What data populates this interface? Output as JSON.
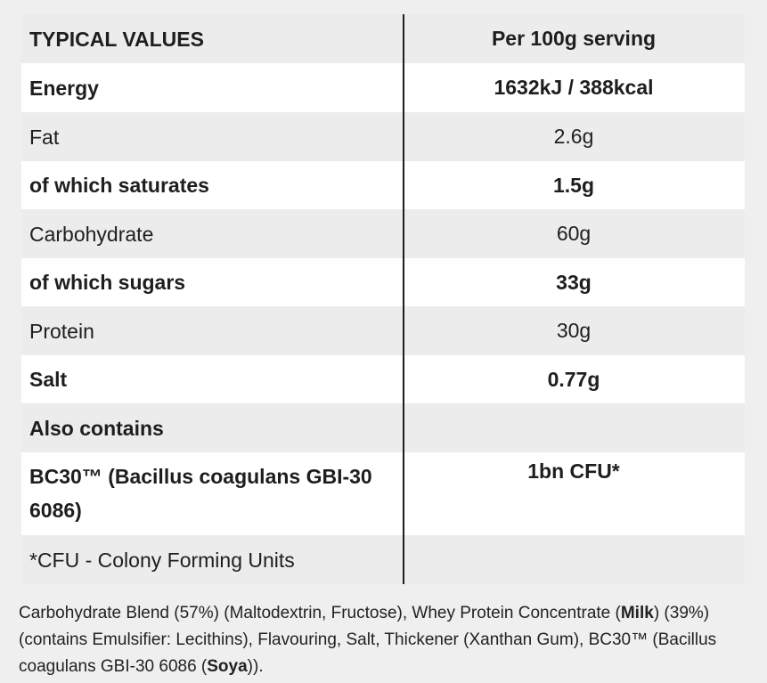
{
  "table": {
    "header": {
      "label": "TYPICAL VALUES",
      "value": "Per 100g serving"
    },
    "rows": [
      {
        "label": "Energy",
        "value": "1632kJ / 388kcal"
      },
      {
        "label": "Fat",
        "value": "2.6g"
      },
      {
        "label": "of which saturates",
        "value": "1.5g"
      },
      {
        "label": "Carbohydrate",
        "value": "60g"
      },
      {
        "label": "of which sugars",
        "value": "33g"
      },
      {
        "label": "Protein",
        "value": "30g"
      },
      {
        "label": "Salt",
        "value": "0.77g"
      },
      {
        "label": "Also contains",
        "value": ""
      },
      {
        "label": "BC30™ (Bacillus coagulans GBI-30 6086)",
        "value": "1bn CFU*"
      },
      {
        "label": "*CFU - Colony Forming Units",
        "value": ""
      }
    ]
  },
  "ingredients": {
    "part1": "Carbohydrate Blend (57%) (Maltodextrin, Fructose), Whey Protein Concentrate (",
    "milk": "Milk",
    "part2": ") (39%) (contains Emulsifier: Lecithins), Flavouring, Salt, Thickener (Xanthan Gum), BC30™ (Bacillus coagulans GBI-30 6086 (",
    "soya": "Soya",
    "part3": "))."
  }
}
